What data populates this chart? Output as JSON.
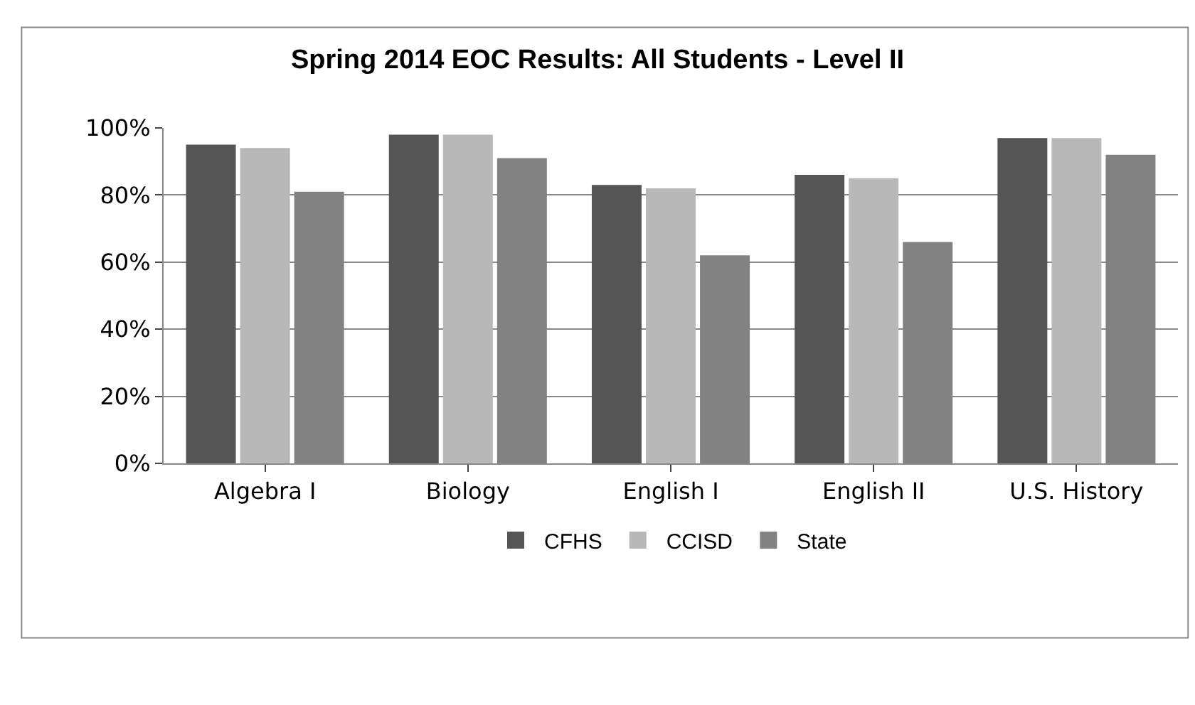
{
  "chart_data": {
    "type": "bar",
    "title": "Spring 2014 EOC Results: All Students - Level II",
    "categories": [
      "Algebra I",
      "Biology",
      "English I",
      "English II",
      "U.S. History"
    ],
    "series": [
      {
        "name": "CFHS",
        "color": "#555555",
        "values": [
          95,
          98,
          83,
          86,
          97
        ]
      },
      {
        "name": "CCISD",
        "color": "#b8b8b8",
        "values": [
          94,
          98,
          82,
          85,
          97
        ]
      },
      {
        "name": "State",
        "color": "#828282",
        "values": [
          81,
          91,
          62,
          66,
          92
        ]
      }
    ],
    "ylim": [
      0,
      100
    ],
    "yticks": [
      {
        "value": 0,
        "label": "0%"
      },
      {
        "value": 20,
        "label": "20%"
      },
      {
        "value": 40,
        "label": "40%"
      },
      {
        "value": 60,
        "label": "60%"
      },
      {
        "value": 80,
        "label": "80%"
      },
      {
        "value": 100,
        "label": "100%"
      }
    ],
    "grid": "y",
    "legend": "bottom"
  }
}
